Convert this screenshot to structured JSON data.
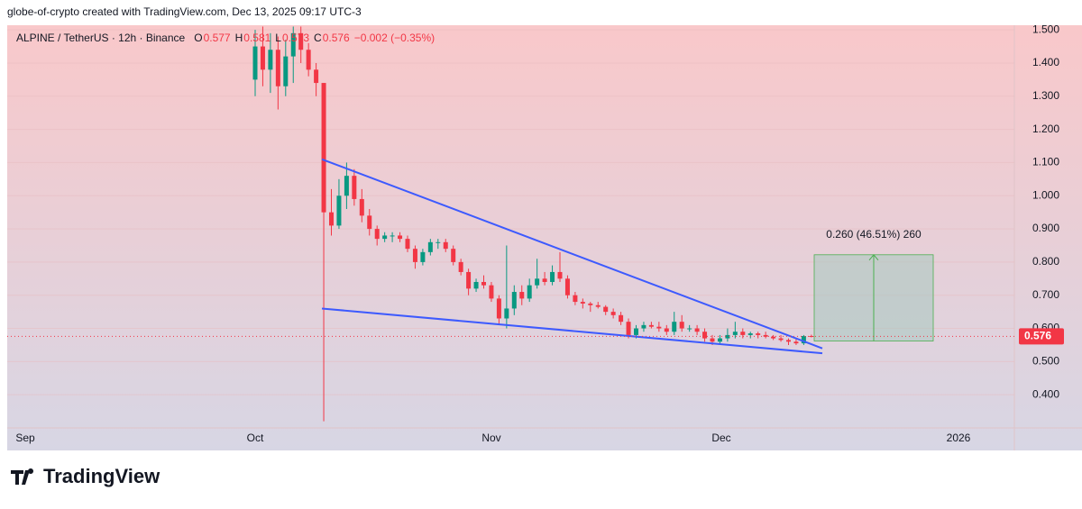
{
  "header": {
    "text": "globe-of-crypto created with TradingView.com, Dec 13, 2025 09:17 UTC-3"
  },
  "chart_data": {
    "type": "candlestick",
    "symbol": "ALPINE / TetherUS · 12h · Binance",
    "legend": [
      {
        "label": "O",
        "value": 0.577
      },
      {
        "label": "H",
        "value": 0.581
      },
      {
        "label": "L",
        "value": 0.573
      },
      {
        "label": "C",
        "value": 0.576
      }
    ],
    "change": "−0.002 (−0.35%)",
    "up_color": "#089981",
    "down_color": "#f23645",
    "open": [
      1.35,
      1.45,
      1.38,
      1.44,
      1.33,
      1.42,
      1.49,
      1.44,
      1.38,
      1.34,
      0.95,
      0.91,
      1.0,
      1.06,
      0.99,
      0.94,
      0.9,
      0.87,
      0.88,
      0.88,
      0.87,
      0.84,
      0.8,
      0.83,
      0.86,
      0.86,
      0.84,
      0.8,
      0.77,
      0.72,
      0.74,
      0.73,
      0.69,
      0.63,
      0.66,
      0.71,
      0.69,
      0.73,
      0.75,
      0.74,
      0.77,
      0.75,
      0.7,
      0.68,
      0.675,
      0.67,
      0.665,
      0.65,
      0.64,
      0.62,
      0.58,
      0.6,
      0.61,
      0.605,
      0.6,
      0.59,
      0.62,
      0.6,
      0.6,
      0.59,
      0.57,
      0.56,
      0.57,
      0.58,
      0.59,
      0.58,
      0.585,
      0.58,
      0.575,
      0.57,
      0.565,
      0.56,
      0.555,
      0.577
    ],
    "high": [
      1.5,
      1.51,
      1.49,
      1.48,
      1.47,
      1.51,
      1.51,
      1.46,
      1.4,
      1.34,
      1.02,
      1.05,
      1.1,
      1.08,
      1.02,
      0.96,
      0.91,
      0.89,
      0.89,
      0.89,
      0.88,
      0.85,
      0.84,
      0.87,
      0.87,
      0.87,
      0.85,
      0.81,
      0.78,
      0.75,
      0.76,
      0.74,
      0.7,
      0.85,
      0.73,
      0.73,
      0.75,
      0.81,
      0.77,
      0.79,
      0.83,
      0.76,
      0.71,
      0.69,
      0.68,
      0.68,
      0.67,
      0.66,
      0.65,
      0.63,
      0.61,
      0.62,
      0.62,
      0.62,
      0.61,
      0.65,
      0.64,
      0.61,
      0.61,
      0.6,
      0.58,
      0.58,
      0.6,
      0.62,
      0.6,
      0.59,
      0.59,
      0.59,
      0.58,
      0.58,
      0.57,
      0.57,
      0.58,
      0.581
    ],
    "low": [
      1.3,
      1.33,
      1.31,
      1.26,
      1.3,
      1.34,
      1.4,
      1.36,
      1.3,
      0.32,
      0.88,
      0.9,
      0.96,
      0.97,
      0.92,
      0.88,
      0.85,
      0.86,
      0.86,
      0.86,
      0.83,
      0.78,
      0.79,
      0.82,
      0.84,
      0.83,
      0.79,
      0.76,
      0.7,
      0.71,
      0.72,
      0.68,
      0.61,
      0.6,
      0.64,
      0.67,
      0.68,
      0.72,
      0.73,
      0.73,
      0.74,
      0.69,
      0.67,
      0.66,
      0.65,
      0.66,
      0.64,
      0.63,
      0.61,
      0.57,
      0.57,
      0.59,
      0.6,
      0.59,
      0.58,
      0.58,
      0.59,
      0.59,
      0.58,
      0.56,
      0.55,
      0.55,
      0.56,
      0.57,
      0.57,
      0.57,
      0.57,
      0.57,
      0.565,
      0.56,
      0.55,
      0.55,
      0.55,
      0.573
    ],
    "close": [
      1.45,
      1.38,
      1.44,
      1.33,
      1.42,
      1.49,
      1.44,
      1.38,
      1.34,
      0.95,
      0.91,
      1.0,
      1.06,
      0.99,
      0.94,
      0.9,
      0.87,
      0.88,
      0.88,
      0.87,
      0.84,
      0.8,
      0.83,
      0.86,
      0.86,
      0.84,
      0.8,
      0.77,
      0.72,
      0.74,
      0.73,
      0.69,
      0.63,
      0.66,
      0.71,
      0.69,
      0.73,
      0.75,
      0.74,
      0.77,
      0.75,
      0.7,
      0.68,
      0.675,
      0.67,
      0.665,
      0.65,
      0.64,
      0.62,
      0.58,
      0.6,
      0.61,
      0.605,
      0.6,
      0.59,
      0.62,
      0.6,
      0.6,
      0.59,
      0.57,
      0.56,
      0.57,
      0.58,
      0.59,
      0.58,
      0.585,
      0.58,
      0.575,
      0.57,
      0.565,
      0.56,
      0.555,
      0.577,
      0.576
    ],
    "ylim": [
      0.3,
      1.514
    ],
    "yticks": [
      {
        "value": 1.5,
        "label": "1.500"
      },
      {
        "value": 1.4,
        "label": "1.400"
      },
      {
        "value": 1.3,
        "label": "1.300"
      },
      {
        "value": 1.2,
        "label": "1.200"
      },
      {
        "value": 1.1,
        "label": "1.100"
      },
      {
        "value": 1.0,
        "label": "1.000"
      },
      {
        "value": 0.9,
        "label": "0.900"
      },
      {
        "value": 0.8,
        "label": "0.800"
      },
      {
        "value": 0.7,
        "label": "0.700"
      },
      {
        "value": 0.6,
        "label": "0.600"
      },
      {
        "value": 0.5,
        "label": "0.500"
      },
      {
        "value": 0.4,
        "label": "0.400"
      }
    ],
    "time_labels": [
      "Sep",
      "Oct",
      "Nov",
      "Dec",
      "2026"
    ],
    "last_price": 0.576,
    "trendline_color": "#3d5afe",
    "trendlines": [
      [
        1.11,
        0.54
      ],
      [
        0.66,
        0.525
      ]
    ],
    "measure": {
      "low": 0.562,
      "high": 0.822,
      "label": "0.260 (46.51%) 260"
    }
  },
  "footer": {
    "brand": "TradingView"
  }
}
